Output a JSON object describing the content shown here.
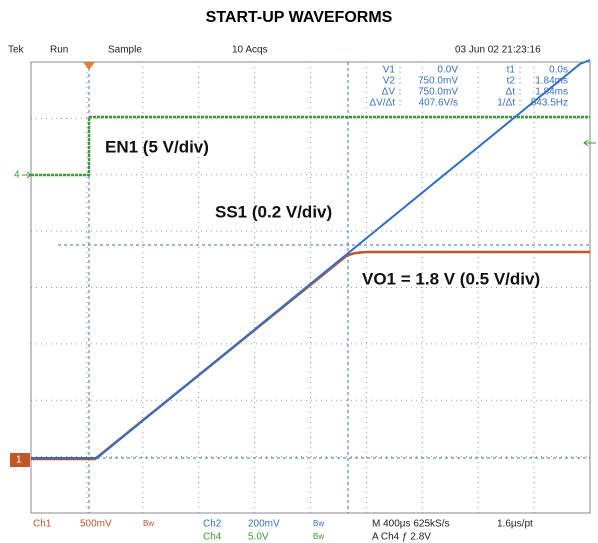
{
  "title": "START-UP WAVEFORMS",
  "header": {
    "brand": "Tek",
    "state": "Run",
    "mode": "Sample",
    "acqs": "10 Acqs",
    "datetime": "03 Jun 02 21:23:16"
  },
  "readout": [
    [
      "V1",
      ":",
      "0.0V",
      "t1",
      ":",
      "0.0s"
    ],
    [
      "V2",
      ":",
      "750.0mV",
      "t2",
      ":",
      "1.84ms"
    ],
    [
      "ΔV",
      ":",
      "750.0mV",
      "Δt",
      ":",
      "1.84ms"
    ],
    [
      "ΔV/Δt",
      ":",
      "407.6V/s",
      "1/Δt",
      ":",
      "543.5Hz"
    ]
  ],
  "labels": {
    "en1": "EN1 (5 V/div)",
    "ss1": "SS1 (0.2 V/div)",
    "vo1": "VO1 = 1.8 V (0.5 V/div)"
  },
  "markers": {
    "ch4": "4",
    "ch1": "1"
  },
  "status": {
    "row1": [
      "Ch1",
      "500mV",
      "Bw",
      "Ch2",
      "200mV",
      "Bw",
      "M 400µs 625kS/s",
      "1.6µs/pt"
    ],
    "row2": [
      "Ch4",
      "5.0V",
      "Bw",
      "A  Ch4 ƒ 2.8V"
    ]
  }
}
